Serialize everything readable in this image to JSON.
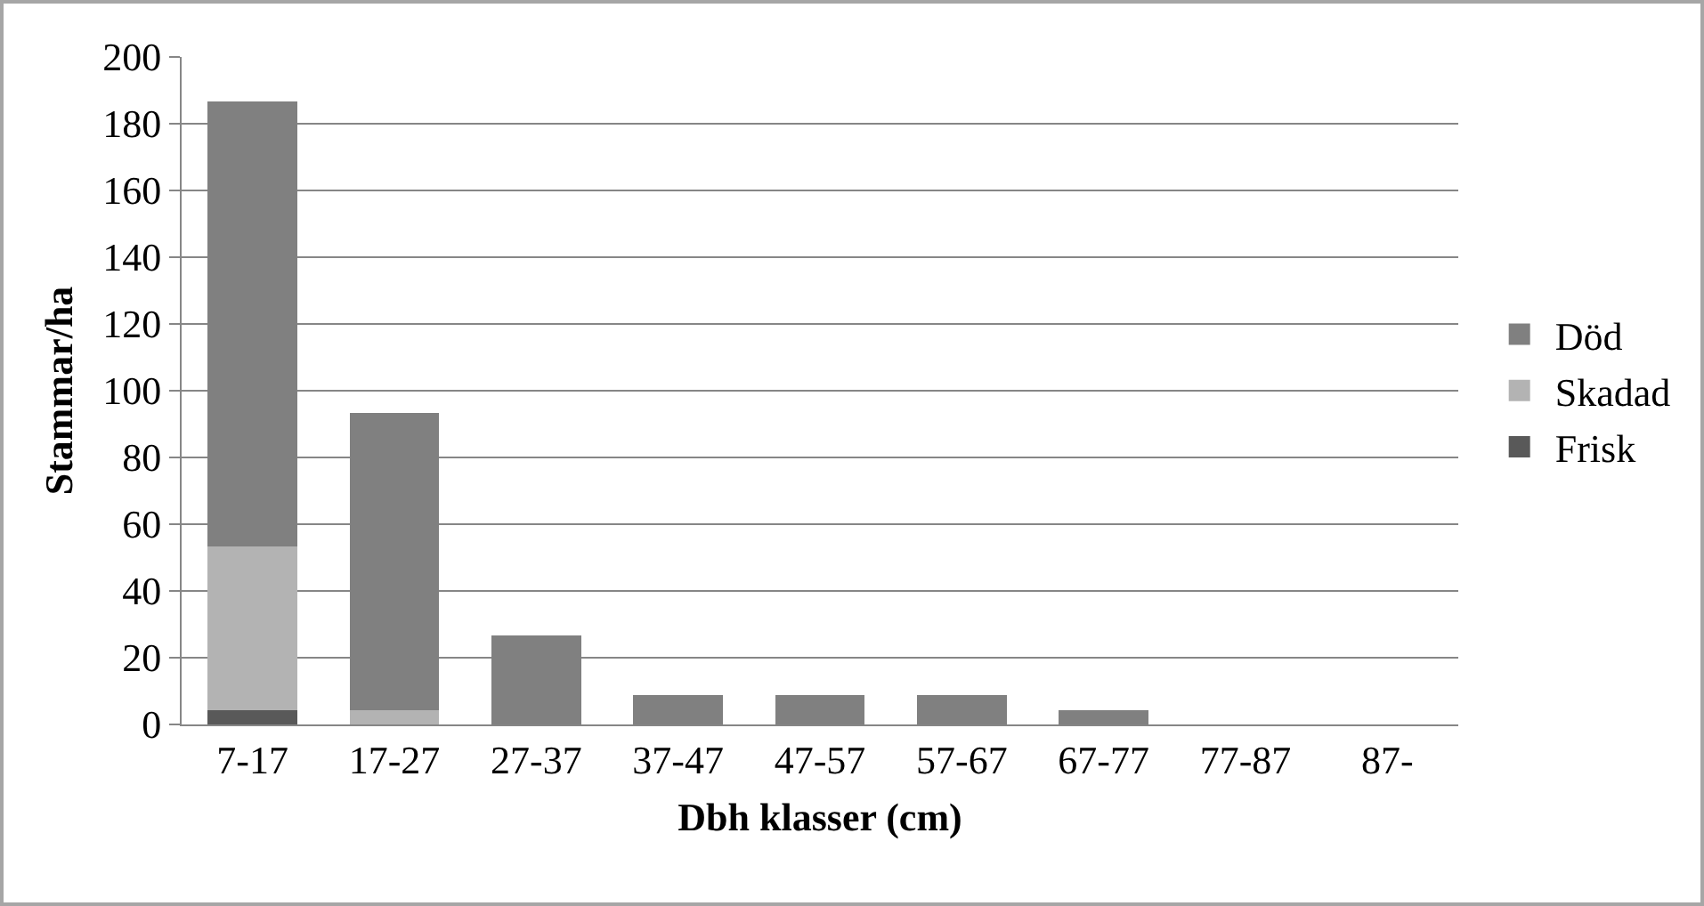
{
  "chart_data": {
    "type": "bar",
    "stacked": true,
    "xlabel": "Dbh klasser (cm)",
    "ylabel": "Stammar/ha",
    "categories": [
      "7-17",
      "17-27",
      "27-37",
      "37-47",
      "47-57",
      "57-67",
      "67-77",
      "77-87",
      "87-"
    ],
    "series": [
      {
        "name": "Frisk",
        "color": "#595959",
        "values": [
          4.4,
          0,
          0,
          0,
          0,
          0,
          0,
          0,
          0
        ]
      },
      {
        "name": "Skadad",
        "color": "#b3b3b3",
        "values": [
          48.9,
          4.4,
          0,
          0,
          0,
          0,
          0,
          0,
          0
        ]
      },
      {
        "name": "Död",
        "color": "#808080",
        "values": [
          133.3,
          88.9,
          26.7,
          8.9,
          8.9,
          8.9,
          4.4,
          0,
          0
        ]
      }
    ],
    "ylim": [
      0,
      200
    ],
    "yticks": [
      0,
      20,
      40,
      60,
      80,
      100,
      120,
      140,
      160,
      180,
      200
    ],
    "grid": "y",
    "legend": "right"
  }
}
